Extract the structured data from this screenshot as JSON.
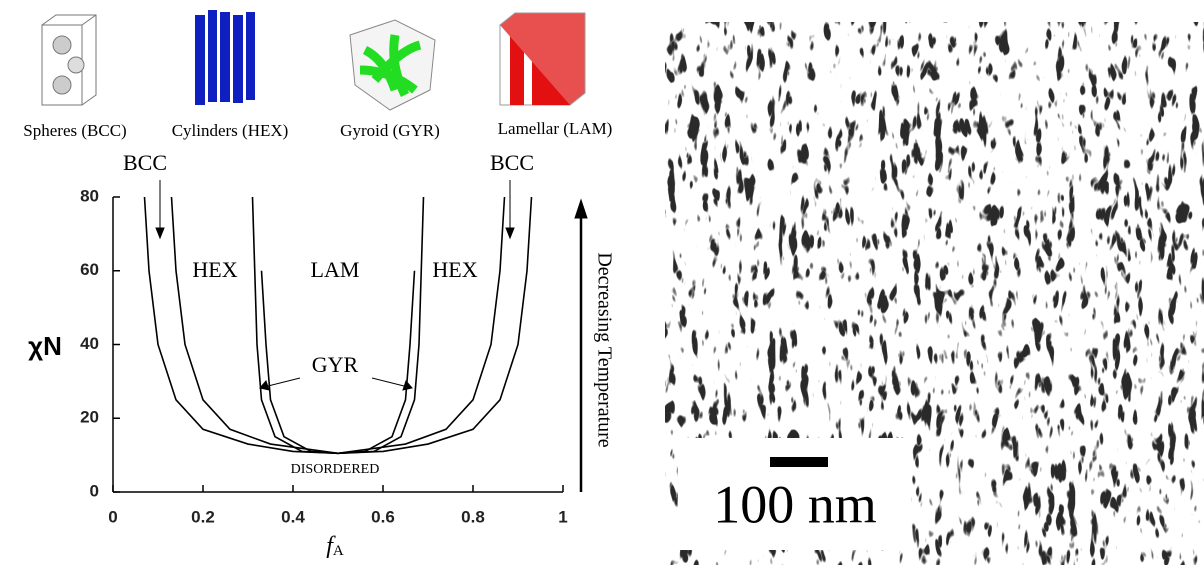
{
  "chart_data": {
    "type": "line",
    "xlabel": "f",
    "xlabel_sub": "A",
    "ylabel": "χN",
    "xlim": [
      0,
      1
    ],
    "ylim": [
      0,
      80
    ],
    "xticks": [
      0,
      0.2,
      0.4,
      0.6,
      0.8,
      1
    ],
    "yticks": [
      0,
      20,
      40,
      60,
      80
    ],
    "series": [
      {
        "color": "#000000",
        "x": [
          0.07,
          0.08,
          0.1,
          0.14,
          0.2,
          0.3,
          0.4,
          0.5,
          0.6,
          0.7,
          0.8,
          0.86,
          0.9,
          0.92,
          0.93
        ],
        "values": [
          80,
          60,
          40,
          25,
          17,
          13,
          11,
          10.5,
          11,
          13,
          17,
          25,
          40,
          60,
          80
        ]
      },
      {
        "color": "#000000",
        "x": [
          0.13,
          0.14,
          0.16,
          0.2,
          0.26,
          0.35,
          0.5,
          0.65,
          0.74,
          0.8,
          0.84,
          0.86,
          0.87
        ],
        "values": [
          80,
          60,
          40,
          25,
          17,
          13,
          10.5,
          13,
          17,
          25,
          40,
          60,
          80
        ]
      },
      {
        "color": "#000000",
        "x": [
          0.31,
          0.315,
          0.32,
          0.33,
          0.36,
          0.42,
          0.5,
          0.58,
          0.64,
          0.67,
          0.68,
          0.685,
          0.69
        ],
        "values": [
          80,
          60,
          40,
          25,
          15,
          11,
          10.5,
          11,
          15,
          25,
          40,
          60,
          80
        ]
      },
      {
        "color": "#000000",
        "x": [
          0.33,
          0.335,
          0.34,
          0.35,
          0.38,
          0.44,
          0.5,
          0.56,
          0.62,
          0.65,
          0.66,
          0.665,
          0.67
        ],
        "values": [
          60,
          50,
          40,
          25,
          15,
          11,
          10.5,
          11,
          15,
          25,
          40,
          50,
          60
        ]
      }
    ],
    "annotations": [
      "BCC",
      "BCC",
      "HEX",
      "LAM",
      "HEX",
      "GYR",
      "DISORDERED",
      "Decreasing Temperature"
    ]
  },
  "structures": [
    "Spheres (BCC)",
    "Cylinders (HEX)",
    "Gyroid (GYR)",
    "Lamellar (LAM)"
  ],
  "micrograph": {
    "scale_bar_label": "100 nm"
  }
}
